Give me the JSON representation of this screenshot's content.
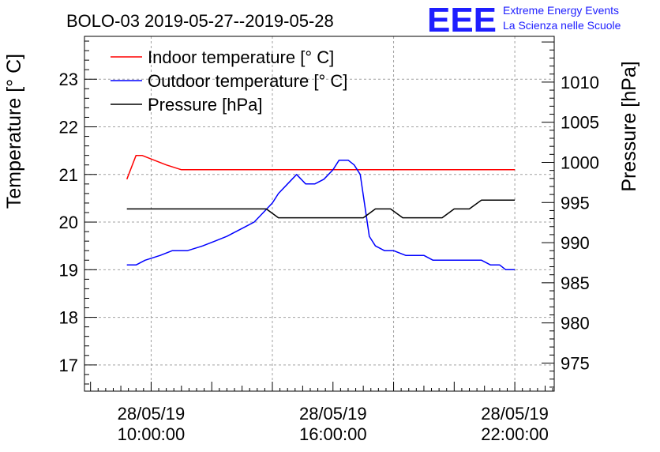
{
  "chart_data": {
    "type": "line",
    "title": "BOLO-03 2019-05-27--2019-05-28",
    "ylabel": "Temperature [° C]",
    "y2label": "Pressure [hPa]",
    "x_unit": "hours",
    "xlim": [
      7.8,
      23.3
    ],
    "ylim": [
      16.45,
      23.9
    ],
    "y2lim": [
      971.5,
      1015.7
    ],
    "xticks": [
      {
        "x": 10,
        "date": "28/05/19",
        "time": "10:00:00"
      },
      {
        "x": 16,
        "date": "28/05/19",
        "time": "16:00:00"
      },
      {
        "x": 22,
        "date": "28/05/19",
        "time": "22:00:00"
      }
    ],
    "yticks": [
      "17",
      "18",
      "19",
      "20",
      "21",
      "22",
      "23"
    ],
    "y2ticks": [
      "975",
      "980",
      "985",
      "990",
      "995",
      "1000",
      "1005",
      "1010"
    ],
    "grid": true,
    "legend_position": "top-left",
    "series": [
      {
        "name": "Indoor temperature [° C]",
        "axis": "left",
        "color": "#ff0000",
        "x": [
          9.2,
          9.5,
          9.7,
          10.5,
          11.0,
          12.0,
          14.0,
          16.0,
          18.0,
          20.0,
          22.0
        ],
        "y": [
          20.9,
          21.4,
          21.4,
          21.2,
          21.1,
          21.1,
          21.1,
          21.1,
          21.1,
          21.1,
          21.1
        ]
      },
      {
        "name": "Outdoor temperature [° C]",
        "axis": "left",
        "color": "#0000ff",
        "x": [
          9.2,
          9.5,
          9.8,
          10.3,
          10.7,
          11.2,
          11.7,
          12.1,
          12.5,
          12.8,
          13.1,
          13.4,
          13.7,
          14.0,
          14.2,
          14.5,
          14.8,
          15.1,
          15.4,
          15.7,
          16.0,
          16.2,
          16.5,
          16.7,
          16.9,
          17.2,
          17.4,
          17.7,
          18.0,
          18.4,
          18.7,
          19.0,
          19.3,
          19.6,
          19.9,
          20.3,
          20.6,
          20.9,
          21.2,
          21.5,
          21.7,
          22.0
        ],
        "y": [
          19.1,
          19.1,
          19.2,
          19.3,
          19.4,
          19.4,
          19.5,
          19.6,
          19.7,
          19.8,
          19.9,
          20.0,
          20.2,
          20.4,
          20.6,
          20.8,
          21.0,
          20.8,
          20.8,
          20.9,
          21.1,
          21.3,
          21.3,
          21.2,
          21.0,
          19.7,
          19.5,
          19.4,
          19.4,
          19.3,
          19.3,
          19.3,
          19.2,
          19.2,
          19.2,
          19.2,
          19.2,
          19.2,
          19.1,
          19.1,
          19.0,
          19.0
        ],
        "y_override": null
      },
      {
        "name": "Pressure [hPa]",
        "axis": "right",
        "color": "#000000",
        "x": [
          9.2,
          13.8,
          14.2,
          17.0,
          17.4,
          17.9,
          18.3,
          19.6,
          20.0,
          20.5,
          20.9,
          22.0
        ],
        "y": [
          994.2,
          994.2,
          993.1,
          993.1,
          994.2,
          994.2,
          993.1,
          993.1,
          994.2,
          994.2,
          995.3,
          995.3
        ]
      }
    ]
  },
  "logo": {
    "text": "EEE",
    "line1": "Extreme Energy Events",
    "line2": "La Scienza nelle Scuole",
    "color": "#1e1eff"
  }
}
